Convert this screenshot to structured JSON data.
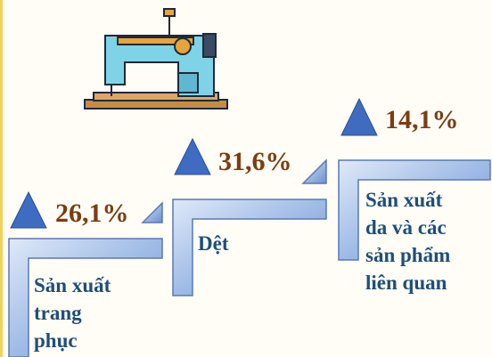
{
  "items": [
    {
      "change": "26,1%",
      "label_lines": [
        "Sản xuất",
        "trang",
        "phục"
      ]
    },
    {
      "change": "31,6%",
      "label_lines": [
        "Dệt"
      ]
    },
    {
      "change": "14,1%",
      "label_lines": [
        "Sản xuất",
        "da và các",
        "sản phẩm",
        "liên quan"
      ]
    }
  ]
}
